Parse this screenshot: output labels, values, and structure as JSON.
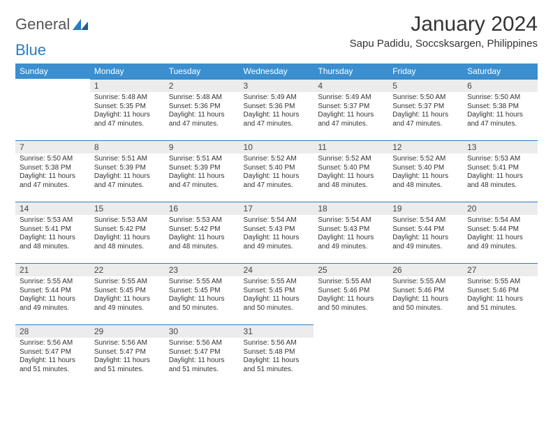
{
  "logo": {
    "part1": "General",
    "part2": "Blue"
  },
  "title": "January 2024",
  "location": "Sapu Padidu, Soccsksargen, Philippines",
  "colors": {
    "header_bg": "#3b8fcf",
    "header_text": "#ffffff",
    "daynum_bg": "#ececec",
    "daynum_border": "#2b7cc0",
    "text": "#333333",
    "logo_blue": "#2b7cc0",
    "logo_gray": "#555555",
    "page_bg": "#ffffff"
  },
  "typography": {
    "title_fontsize": 30,
    "location_fontsize": 15,
    "header_fontsize": 12,
    "daynum_fontsize": 12,
    "body_fontsize": 10
  },
  "weekdays": [
    "Sunday",
    "Monday",
    "Tuesday",
    "Wednesday",
    "Thursday",
    "Friday",
    "Saturday"
  ],
  "weeks": [
    [
      null,
      {
        "n": "1",
        "sunrise": "5:48 AM",
        "sunset": "5:35 PM",
        "daylight": "11 hours and 47 minutes."
      },
      {
        "n": "2",
        "sunrise": "5:48 AM",
        "sunset": "5:36 PM",
        "daylight": "11 hours and 47 minutes."
      },
      {
        "n": "3",
        "sunrise": "5:49 AM",
        "sunset": "5:36 PM",
        "daylight": "11 hours and 47 minutes."
      },
      {
        "n": "4",
        "sunrise": "5:49 AM",
        "sunset": "5:37 PM",
        "daylight": "11 hours and 47 minutes."
      },
      {
        "n": "5",
        "sunrise": "5:50 AM",
        "sunset": "5:37 PM",
        "daylight": "11 hours and 47 minutes."
      },
      {
        "n": "6",
        "sunrise": "5:50 AM",
        "sunset": "5:38 PM",
        "daylight": "11 hours and 47 minutes."
      }
    ],
    [
      {
        "n": "7",
        "sunrise": "5:50 AM",
        "sunset": "5:38 PM",
        "daylight": "11 hours and 47 minutes."
      },
      {
        "n": "8",
        "sunrise": "5:51 AM",
        "sunset": "5:39 PM",
        "daylight": "11 hours and 47 minutes."
      },
      {
        "n": "9",
        "sunrise": "5:51 AM",
        "sunset": "5:39 PM",
        "daylight": "11 hours and 47 minutes."
      },
      {
        "n": "10",
        "sunrise": "5:52 AM",
        "sunset": "5:40 PM",
        "daylight": "11 hours and 47 minutes."
      },
      {
        "n": "11",
        "sunrise": "5:52 AM",
        "sunset": "5:40 PM",
        "daylight": "11 hours and 48 minutes."
      },
      {
        "n": "12",
        "sunrise": "5:52 AM",
        "sunset": "5:40 PM",
        "daylight": "11 hours and 48 minutes."
      },
      {
        "n": "13",
        "sunrise": "5:53 AM",
        "sunset": "5:41 PM",
        "daylight": "11 hours and 48 minutes."
      }
    ],
    [
      {
        "n": "14",
        "sunrise": "5:53 AM",
        "sunset": "5:41 PM",
        "daylight": "11 hours and 48 minutes."
      },
      {
        "n": "15",
        "sunrise": "5:53 AM",
        "sunset": "5:42 PM",
        "daylight": "11 hours and 48 minutes."
      },
      {
        "n": "16",
        "sunrise": "5:53 AM",
        "sunset": "5:42 PM",
        "daylight": "11 hours and 48 minutes."
      },
      {
        "n": "17",
        "sunrise": "5:54 AM",
        "sunset": "5:43 PM",
        "daylight": "11 hours and 49 minutes."
      },
      {
        "n": "18",
        "sunrise": "5:54 AM",
        "sunset": "5:43 PM",
        "daylight": "11 hours and 49 minutes."
      },
      {
        "n": "19",
        "sunrise": "5:54 AM",
        "sunset": "5:44 PM",
        "daylight": "11 hours and 49 minutes."
      },
      {
        "n": "20",
        "sunrise": "5:54 AM",
        "sunset": "5:44 PM",
        "daylight": "11 hours and 49 minutes."
      }
    ],
    [
      {
        "n": "21",
        "sunrise": "5:55 AM",
        "sunset": "5:44 PM",
        "daylight": "11 hours and 49 minutes."
      },
      {
        "n": "22",
        "sunrise": "5:55 AM",
        "sunset": "5:45 PM",
        "daylight": "11 hours and 49 minutes."
      },
      {
        "n": "23",
        "sunrise": "5:55 AM",
        "sunset": "5:45 PM",
        "daylight": "11 hours and 50 minutes."
      },
      {
        "n": "24",
        "sunrise": "5:55 AM",
        "sunset": "5:45 PM",
        "daylight": "11 hours and 50 minutes."
      },
      {
        "n": "25",
        "sunrise": "5:55 AM",
        "sunset": "5:46 PM",
        "daylight": "11 hours and 50 minutes."
      },
      {
        "n": "26",
        "sunrise": "5:55 AM",
        "sunset": "5:46 PM",
        "daylight": "11 hours and 50 minutes."
      },
      {
        "n": "27",
        "sunrise": "5:55 AM",
        "sunset": "5:46 PM",
        "daylight": "11 hours and 51 minutes."
      }
    ],
    [
      {
        "n": "28",
        "sunrise": "5:56 AM",
        "sunset": "5:47 PM",
        "daylight": "11 hours and 51 minutes."
      },
      {
        "n": "29",
        "sunrise": "5:56 AM",
        "sunset": "5:47 PM",
        "daylight": "11 hours and 51 minutes."
      },
      {
        "n": "30",
        "sunrise": "5:56 AM",
        "sunset": "5:47 PM",
        "daylight": "11 hours and 51 minutes."
      },
      {
        "n": "31",
        "sunrise": "5:56 AM",
        "sunset": "5:48 PM",
        "daylight": "11 hours and 51 minutes."
      },
      null,
      null,
      null
    ]
  ],
  "labels": {
    "sunrise": "Sunrise:",
    "sunset": "Sunset:",
    "daylight": "Daylight:"
  }
}
